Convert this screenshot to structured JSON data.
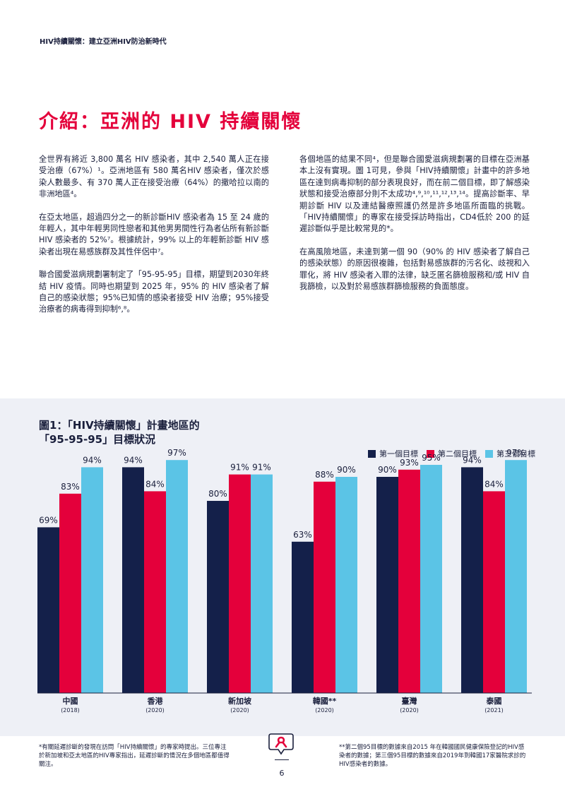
{
  "running_head": "HIV持續關懷：建立亞洲HIV防治新時代",
  "title": "介紹：亞洲的 HIV 持續關懷",
  "left_column": [
    "全世界有將近 3,800 萬名 HIV 感染者，其中 2,540 萬人正在接受治療（67%）¹。亞洲地區有 580 萬名HIV 感染者，僅次於感染人數最多、有 370 萬人正在接受治療（64%）的撒哈拉以南的非洲地區⁴。",
    "在亞太地區，超過四分之一的新診斷HIV 感染者為 15 至 24 歲的年輕人，其中年輕男同性戀者和其他男男間性行為者佔所有新診斷 HIV 感染者的 52%⁷。根據統計，99% 以上的年輕新診斷 HIV 感染者出現在易感族群及其性伴侶中⁷。",
    "聯合國愛滋病規劃署制定了「95-95-95」目標，期望到2030年終結 HIV 疫情。同時也期望到 2025 年，95% 的 HIV 感染者了解自己的感染狀態；95%已知情的感染者接受 HIV 治療；95%接受治療者的病毒得到抑制⁶,⁸。"
  ],
  "right_column": [
    "各個地區的結果不同⁴，但是聯合國愛滋病規劃署的目標在亞洲基本上沒有實現。圖 1可見，參與「HIV持續關懷」計畫中的許多地區在達到病毒抑制的部分表現良好，而在前二個目標，即了解感染狀態和接受治療部分則不太成功⁴,⁹,¹⁰,¹¹,¹²,¹³,¹⁴。提高診斷率、早期診斷 HIV 以及連結醫療照護仍然是許多地區所面臨的挑戰。「HIV持續關懷」的專家在接受採訪時指出，CD4低於 200 的延遲診斷似乎是比較常見的*。",
    "在高風險地區，未達到第一個 90（90% 的 HIV 感染者了解自己的感染狀態）的原因很複雜，包括對易感族群的污名化、歧視和入罪化，將 HIV 感染者入罪的法律，缺乏匿名篩檢服務和/或 HIV 自我篩檢，以及對於易感族群篩檢服務的負面態度。"
  ],
  "figure": {
    "title_line1": "圖1：「HIV持續關懷」計畫地區的",
    "title_line2": "「95-95-95」目標狀況"
  },
  "chart_data": {
    "type": "bar",
    "categories": [
      "中國",
      "香港",
      "新加坡",
      "韓國**",
      "臺灣",
      "泰國"
    ],
    "category_years": [
      "(2018)",
      "(2020)",
      "(2020)",
      "(2020)",
      "(2020)",
      "(2021)"
    ],
    "series": [
      {
        "name": "第一個目標",
        "color": "#14204a",
        "values": [
          69,
          94,
          80,
          63,
          90,
          94
        ]
      },
      {
        "name": "第二個目標",
        "color": "#e4003b",
        "values": [
          83,
          84,
          91,
          88,
          93,
          84
        ]
      },
      {
        "name": "第三個目標",
        "color": "#5bc4e6",
        "values": [
          94,
          97,
          91,
          90,
          95,
          97
        ]
      }
    ],
    "value_suffix": "%",
    "legend_position": "top-right",
    "grid": false
  },
  "footnote_left": "*有關延遲診斷的發現在訪問「HIV持續關懷」的專家時提出。三位專注於新加坡和亞太地區的HIV專家指出，延遲診斷的情況在多個地區都值得關注。",
  "footnote_right": "**第二個95目標的數據來自2015 年在韓國國民健康保險登記的HIV感染者的數據；第三個95目標的數據來自2019年到韓國17家醫院求診的HIV感染者的數據。",
  "page_number": "6"
}
